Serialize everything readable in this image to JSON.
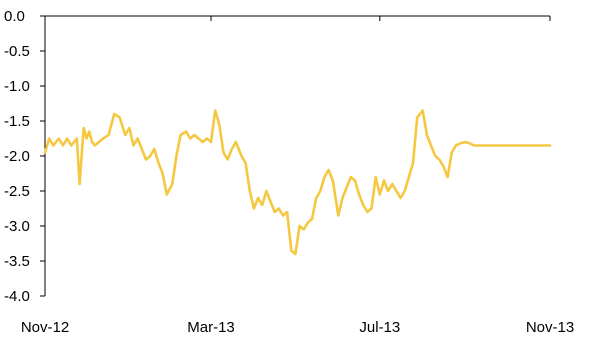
{
  "chart_data": {
    "type": "line",
    "title": "",
    "xlabel": "",
    "ylabel": "",
    "ylim": [
      -4.0,
      0.0
    ],
    "y_ticks": [
      0.0,
      -0.5,
      -1.0,
      -1.5,
      -2.0,
      -2.5,
      -3.0,
      -3.5,
      -4.0
    ],
    "y_tick_labels": [
      "0.0",
      "-0.5",
      "-1.0",
      "-1.5",
      "-2.0",
      "-2.5",
      "-3.0",
      "-3.5",
      "-4.0"
    ],
    "x_range": [
      "2012-11-01",
      "2013-11-01"
    ],
    "x_ticks": [
      "2012-11-01",
      "2013-03-01",
      "2013-07-01",
      "2013-11-01"
    ],
    "x_tick_labels": [
      "Nov-12",
      "Mar-13",
      "Jul-13",
      "Nov-13"
    ],
    "grid": false,
    "legend": "none",
    "colors": {
      "series": "#f5c842",
      "axis": "#000000"
    },
    "series": [
      {
        "x": [
          "2012-11-01",
          "2012-11-04",
          "2012-11-07",
          "2012-11-11",
          "2012-11-14",
          "2012-11-17",
          "2012-11-20",
          "2012-11-24",
          "2012-11-26",
          "2012-11-29",
          "2012-12-01",
          "2012-12-03",
          "2012-12-05",
          "2012-12-07",
          "2012-12-10",
          "2012-12-13",
          "2012-12-17",
          "2012-12-21",
          "2012-12-25",
          "2012-12-29",
          "2013-01-01",
          "2013-01-04",
          "2013-01-07",
          "2013-01-10",
          "2013-01-13",
          "2013-01-16",
          "2013-01-19",
          "2013-01-22",
          "2013-01-25",
          "2013-01-28",
          "2013-02-01",
          "2013-02-04",
          "2013-02-07",
          "2013-02-11",
          "2013-02-14",
          "2013-02-17",
          "2013-02-20",
          "2013-02-23",
          "2013-02-26",
          "2013-03-01",
          "2013-03-04",
          "2013-03-07",
          "2013-03-10",
          "2013-03-13",
          "2013-03-16",
          "2013-03-19",
          "2013-03-23",
          "2013-03-26",
          "2013-03-29",
          "2013-04-01",
          "2013-04-04",
          "2013-04-07",
          "2013-04-10",
          "2013-04-13",
          "2013-04-16",
          "2013-04-19",
          "2013-04-22",
          "2013-04-25",
          "2013-04-28",
          "2013-05-01",
          "2013-05-04",
          "2013-05-07",
          "2013-05-10",
          "2013-05-13",
          "2013-05-16",
          "2013-05-19",
          "2013-05-22",
          "2013-05-25",
          "2013-05-28",
          "2013-06-01",
          "2013-06-04",
          "2013-06-07",
          "2013-06-10",
          "2013-06-13",
          "2013-06-16",
          "2013-06-19",
          "2013-06-22",
          "2013-06-25",
          "2013-06-28",
          "2013-07-01",
          "2013-07-04",
          "2013-07-07",
          "2013-07-10",
          "2013-07-13",
          "2013-07-16",
          "2013-07-19",
          "2013-07-22",
          "2013-07-25",
          "2013-07-28",
          "2013-08-01",
          "2013-08-04",
          "2013-08-07",
          "2013-08-10",
          "2013-08-13",
          "2013-08-16",
          "2013-08-19",
          "2013-08-22",
          "2013-08-25",
          "2013-08-28",
          "2013-09-01",
          "2013-09-04",
          "2013-09-07",
          "2013-09-10",
          "2013-09-13",
          "2013-09-16",
          "2013-09-19",
          "2013-09-22",
          "2013-09-25",
          "2013-09-28",
          "2013-10-01",
          "2013-10-04",
          "2013-10-07",
          "2013-10-10",
          "2013-10-13",
          "2013-10-16",
          "2013-10-19",
          "2013-10-22",
          "2013-10-25",
          "2013-10-28",
          "2013-11-01"
        ],
        "y": [
          -1.95,
          -1.75,
          -1.85,
          -1.75,
          -1.85,
          -1.75,
          -1.85,
          -1.75,
          -2.4,
          -1.6,
          -1.75,
          -1.65,
          -1.8,
          -1.85,
          -1.8,
          -1.75,
          -1.7,
          -1.4,
          -1.45,
          -1.7,
          -1.6,
          -1.85,
          -1.75,
          -1.9,
          -2.05,
          -2.0,
          -1.9,
          -2.1,
          -2.25,
          -2.55,
          -2.4,
          -2.0,
          -1.7,
          -1.65,
          -1.75,
          -1.7,
          -1.75,
          -1.8,
          -1.75,
          -1.8,
          -1.35,
          -1.55,
          -1.95,
          -2.05,
          -1.9,
          -1.8,
          -2.0,
          -2.1,
          -2.5,
          -2.75,
          -2.6,
          -2.7,
          -2.5,
          -2.65,
          -2.8,
          -2.75,
          -2.85,
          -2.8,
          -3.35,
          -3.4,
          -3.0,
          -3.05,
          -2.95,
          -2.9,
          -2.6,
          -2.5,
          -2.3,
          -2.2,
          -2.35,
          -2.85,
          -2.6,
          -2.45,
          -2.3,
          -2.35,
          -2.55,
          -2.7,
          -2.8,
          -2.75,
          -2.3,
          -2.55,
          -2.35,
          -2.5,
          -2.4,
          -2.5,
          -2.6,
          -2.5,
          -2.3,
          -2.1,
          -1.45,
          -1.35,
          -1.7,
          -1.85,
          -2.0,
          -2.05,
          -2.15,
          -2.3,
          -1.95,
          -1.85,
          -1.82,
          -1.8,
          -1.82,
          -1.85,
          -1.85,
          -1.85,
          -1.85,
          -1.85,
          -1.85,
          -1.85,
          -1.85,
          -1.85,
          -1.85,
          -1.85,
          -1.85,
          -1.85,
          -1.85,
          -1.85,
          -1.85,
          -1.85,
          -1.85,
          -1.85
        ]
      }
    ]
  }
}
